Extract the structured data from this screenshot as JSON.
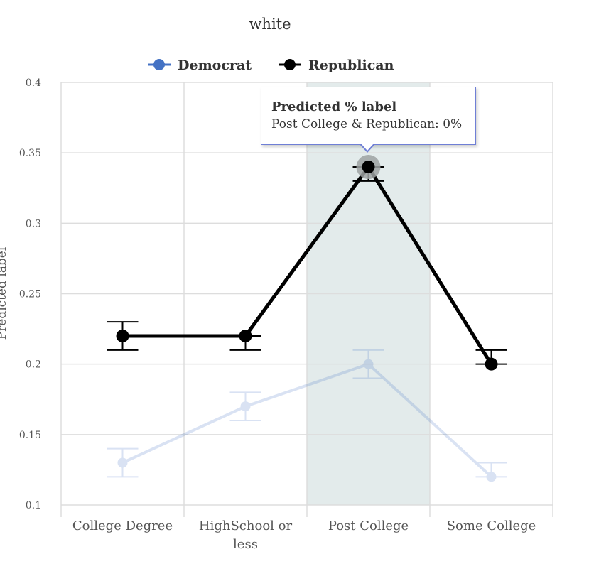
{
  "chart_data": {
    "type": "line",
    "title": "white",
    "ylabel": "Predicted label",
    "xlabel": "",
    "ylim": [
      0.1,
      0.4
    ],
    "yticks": [
      "0.1",
      "0.15",
      "0.2",
      "0.25",
      "0.3",
      "0.35",
      "0.4"
    ],
    "categories": [
      "College Degree",
      "HighSchool or less",
      "Post College",
      "Some College"
    ],
    "category_lines": [
      [
        "College Degree"
      ],
      [
        "HighSchool or",
        "less"
      ],
      [
        "Post College"
      ],
      [
        "Some College"
      ]
    ],
    "highlighted_category": "Post College",
    "legend_position": "top",
    "grid": true,
    "series": [
      {
        "name": "Democrat",
        "color": "#4472c4",
        "faded": true,
        "values": [
          0.13,
          0.17,
          0.2,
          0.12
        ],
        "lower": [
          0.12,
          0.16,
          0.19,
          0.12
        ],
        "upper": [
          0.14,
          0.18,
          0.21,
          0.13
        ]
      },
      {
        "name": "Republican",
        "color": "#000000",
        "faded": false,
        "values": [
          0.22,
          0.22,
          0.34,
          0.2
        ],
        "lower": [
          0.21,
          0.21,
          0.33,
          0.2
        ],
        "upper": [
          0.23,
          0.22,
          0.34,
          0.21
        ]
      }
    ]
  },
  "tooltip": {
    "title": "Predicted % label",
    "body": "Post College & Republican: 0%"
  }
}
